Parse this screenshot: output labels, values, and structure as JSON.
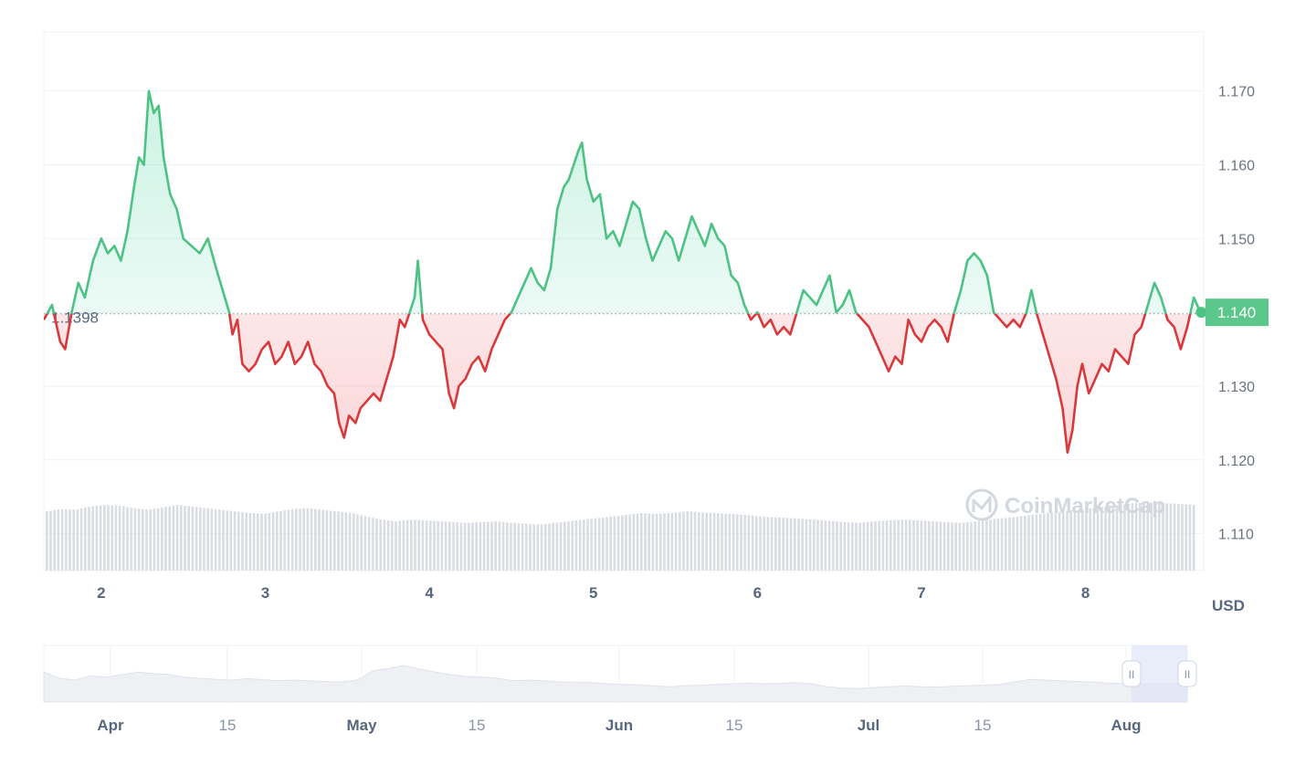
{
  "chart_data": {
    "type": "line",
    "unit": "USD",
    "baseline": 1.1398,
    "baseline_label": "1.1398",
    "current_value": 1.14,
    "current_label": "1.140",
    "ylim": [
      1.105,
      1.178
    ],
    "y_ticks": [
      "1.170",
      "1.160",
      "1.150",
      "1.140",
      "1.130",
      "1.120",
      "1.110"
    ],
    "x_ticks": [
      "2",
      "3",
      "4",
      "5",
      "6",
      "7",
      "8"
    ],
    "xlim": [
      1.65,
      8.72
    ],
    "colors": {
      "up": "#16c784",
      "down": "#ea3943",
      "badge": "#5cc78a",
      "volume": "#d9dce1"
    },
    "series": [
      {
        "values": [
          [
            1.65,
            1.139
          ],
          [
            1.7,
            1.141
          ],
          [
            1.75,
            1.136
          ],
          [
            1.78,
            1.135
          ],
          [
            1.82,
            1.14
          ],
          [
            1.86,
            1.144
          ],
          [
            1.9,
            1.142
          ],
          [
            1.95,
            1.147
          ],
          [
            2.0,
            1.15
          ],
          [
            2.04,
            1.148
          ],
          [
            2.08,
            1.149
          ],
          [
            2.12,
            1.147
          ],
          [
            2.16,
            1.151
          ],
          [
            2.2,
            1.157
          ],
          [
            2.23,
            1.161
          ],
          [
            2.26,
            1.16
          ],
          [
            2.29,
            1.17
          ],
          [
            2.32,
            1.167
          ],
          [
            2.35,
            1.168
          ],
          [
            2.38,
            1.161
          ],
          [
            2.42,
            1.156
          ],
          [
            2.46,
            1.154
          ],
          [
            2.5,
            1.15
          ],
          [
            2.55,
            1.149
          ],
          [
            2.6,
            1.148
          ],
          [
            2.65,
            1.15
          ],
          [
            2.7,
            1.146
          ],
          [
            2.74,
            1.143
          ],
          [
            2.78,
            1.14
          ],
          [
            2.8,
            1.137
          ],
          [
            2.83,
            1.139
          ],
          [
            2.86,
            1.133
          ],
          [
            2.9,
            1.132
          ],
          [
            2.94,
            1.133
          ],
          [
            2.98,
            1.135
          ],
          [
            3.02,
            1.136
          ],
          [
            3.06,
            1.133
          ],
          [
            3.1,
            1.134
          ],
          [
            3.14,
            1.136
          ],
          [
            3.18,
            1.133
          ],
          [
            3.22,
            1.134
          ],
          [
            3.26,
            1.136
          ],
          [
            3.3,
            1.133
          ],
          [
            3.34,
            1.132
          ],
          [
            3.38,
            1.13
          ],
          [
            3.42,
            1.129
          ],
          [
            3.45,
            1.125
          ],
          [
            3.48,
            1.123
          ],
          [
            3.51,
            1.126
          ],
          [
            3.55,
            1.125
          ],
          [
            3.58,
            1.127
          ],
          [
            3.62,
            1.128
          ],
          [
            3.66,
            1.129
          ],
          [
            3.7,
            1.128
          ],
          [
            3.74,
            1.131
          ],
          [
            3.78,
            1.134
          ],
          [
            3.82,
            1.139
          ],
          [
            3.85,
            1.138
          ],
          [
            3.88,
            1.14
          ],
          [
            3.91,
            1.142
          ],
          [
            3.93,
            1.147
          ],
          [
            3.96,
            1.139
          ],
          [
            4.0,
            1.137
          ],
          [
            4.04,
            1.136
          ],
          [
            4.08,
            1.135
          ],
          [
            4.12,
            1.129
          ],
          [
            4.15,
            1.127
          ],
          [
            4.18,
            1.13
          ],
          [
            4.22,
            1.131
          ],
          [
            4.26,
            1.133
          ],
          [
            4.3,
            1.134
          ],
          [
            4.34,
            1.132
          ],
          [
            4.38,
            1.135
          ],
          [
            4.42,
            1.137
          ],
          [
            4.46,
            1.139
          ],
          [
            4.5,
            1.14
          ],
          [
            4.54,
            1.142
          ],
          [
            4.58,
            1.144
          ],
          [
            4.62,
            1.146
          ],
          [
            4.66,
            1.144
          ],
          [
            4.7,
            1.143
          ],
          [
            4.74,
            1.146
          ],
          [
            4.78,
            1.154
          ],
          [
            4.82,
            1.157
          ],
          [
            4.85,
            1.158
          ],
          [
            4.88,
            1.16
          ],
          [
            4.91,
            1.162
          ],
          [
            4.93,
            1.163
          ],
          [
            4.96,
            1.158
          ],
          [
            5.0,
            1.155
          ],
          [
            5.04,
            1.156
          ],
          [
            5.08,
            1.15
          ],
          [
            5.12,
            1.151
          ],
          [
            5.16,
            1.149
          ],
          [
            5.2,
            1.152
          ],
          [
            5.24,
            1.155
          ],
          [
            5.28,
            1.154
          ],
          [
            5.32,
            1.15
          ],
          [
            5.36,
            1.147
          ],
          [
            5.4,
            1.149
          ],
          [
            5.44,
            1.151
          ],
          [
            5.48,
            1.15
          ],
          [
            5.52,
            1.147
          ],
          [
            5.56,
            1.15
          ],
          [
            5.6,
            1.153
          ],
          [
            5.64,
            1.151
          ],
          [
            5.68,
            1.149
          ],
          [
            5.72,
            1.152
          ],
          [
            5.76,
            1.15
          ],
          [
            5.8,
            1.149
          ],
          [
            5.84,
            1.145
          ],
          [
            5.88,
            1.144
          ],
          [
            5.92,
            1.141
          ],
          [
            5.96,
            1.139
          ],
          [
            6.0,
            1.14
          ],
          [
            6.04,
            1.138
          ],
          [
            6.08,
            1.139
          ],
          [
            6.12,
            1.137
          ],
          [
            6.16,
            1.138
          ],
          [
            6.2,
            1.137
          ],
          [
            6.24,
            1.14
          ],
          [
            6.28,
            1.143
          ],
          [
            6.32,
            1.142
          ],
          [
            6.36,
            1.141
          ],
          [
            6.4,
            1.143
          ],
          [
            6.44,
            1.145
          ],
          [
            6.48,
            1.14
          ],
          [
            6.52,
            1.141
          ],
          [
            6.56,
            1.143
          ],
          [
            6.6,
            1.14
          ],
          [
            6.64,
            1.139
          ],
          [
            6.68,
            1.138
          ],
          [
            6.72,
            1.136
          ],
          [
            6.76,
            1.134
          ],
          [
            6.8,
            1.132
          ],
          [
            6.84,
            1.134
          ],
          [
            6.88,
            1.133
          ],
          [
            6.92,
            1.139
          ],
          [
            6.96,
            1.137
          ],
          [
            7.0,
            1.136
          ],
          [
            7.04,
            1.138
          ],
          [
            7.08,
            1.139
          ],
          [
            7.12,
            1.138
          ],
          [
            7.16,
            1.136
          ],
          [
            7.2,
            1.14
          ],
          [
            7.24,
            1.143
          ],
          [
            7.28,
            1.147
          ],
          [
            7.32,
            1.148
          ],
          [
            7.36,
            1.147
          ],
          [
            7.4,
            1.145
          ],
          [
            7.44,
            1.14
          ],
          [
            7.48,
            1.139
          ],
          [
            7.52,
            1.138
          ],
          [
            7.56,
            1.139
          ],
          [
            7.6,
            1.138
          ],
          [
            7.64,
            1.14
          ],
          [
            7.67,
            1.143
          ],
          [
            7.7,
            1.14
          ],
          [
            7.74,
            1.137
          ],
          [
            7.78,
            1.134
          ],
          [
            7.82,
            1.131
          ],
          [
            7.86,
            1.127
          ],
          [
            7.89,
            1.121
          ],
          [
            7.92,
            1.124
          ],
          [
            7.95,
            1.13
          ],
          [
            7.98,
            1.133
          ],
          [
            8.02,
            1.129
          ],
          [
            8.06,
            1.131
          ],
          [
            8.1,
            1.133
          ],
          [
            8.14,
            1.132
          ],
          [
            8.18,
            1.135
          ],
          [
            8.22,
            1.134
          ],
          [
            8.26,
            1.133
          ],
          [
            8.3,
            1.137
          ],
          [
            8.34,
            1.138
          ],
          [
            8.38,
            1.141
          ],
          [
            8.42,
            1.144
          ],
          [
            8.46,
            1.142
          ],
          [
            8.5,
            1.139
          ],
          [
            8.54,
            1.138
          ],
          [
            8.58,
            1.135
          ],
          [
            8.62,
            1.138
          ],
          [
            8.66,
            1.142
          ],
          [
            8.7,
            1.14
          ]
        ]
      }
    ],
    "navigator": {
      "month_ticks": [
        {
          "label": "Apr",
          "major": true
        },
        {
          "label": "15",
          "major": false
        },
        {
          "label": "May",
          "major": true
        },
        {
          "label": "15",
          "major": false
        },
        {
          "label": "Jun",
          "major": true
        },
        {
          "label": "15",
          "major": false
        },
        {
          "label": "Jul",
          "major": true
        },
        {
          "label": "15",
          "major": false
        },
        {
          "label": "Aug",
          "major": true
        }
      ],
      "handle_glyph": "II",
      "profile": [
        0.62,
        0.45,
        0.4,
        0.52,
        0.48,
        0.55,
        0.62,
        0.58,
        0.55,
        0.48,
        0.45,
        0.42,
        0.4,
        0.44,
        0.41,
        0.38,
        0.4,
        0.38,
        0.36,
        0.35,
        0.4,
        0.65,
        0.72,
        0.8,
        0.7,
        0.62,
        0.55,
        0.5,
        0.48,
        0.45,
        0.38,
        0.4,
        0.38,
        0.35,
        0.34,
        0.33,
        0.3,
        0.28,
        0.27,
        0.24,
        0.22,
        0.25,
        0.26,
        0.28,
        0.3,
        0.32,
        0.3,
        0.31,
        0.33,
        0.3,
        0.22,
        0.18,
        0.17,
        0.2,
        0.22,
        0.24,
        0.22,
        0.21,
        0.23,
        0.25,
        0.26,
        0.28,
        0.35,
        0.42,
        0.4,
        0.38,
        0.36,
        0.35,
        0.32,
        0.3,
        0.28,
        0.3,
        0.31,
        0.3
      ]
    },
    "volume_profile": [
      0.72,
      0.75,
      0.74,
      0.78,
      0.8,
      0.79,
      0.76,
      0.74,
      0.77,
      0.8,
      0.78,
      0.76,
      0.74,
      0.72,
      0.7,
      0.69,
      0.72,
      0.75,
      0.76,
      0.74,
      0.72,
      0.7,
      0.66,
      0.62,
      0.6,
      0.62,
      0.61,
      0.6,
      0.59,
      0.58,
      0.59,
      0.6,
      0.58,
      0.57,
      0.56,
      0.58,
      0.6,
      0.62,
      0.64,
      0.66,
      0.68,
      0.7,
      0.69,
      0.7,
      0.72,
      0.71,
      0.7,
      0.69,
      0.68,
      0.66,
      0.65,
      0.64,
      0.63,
      0.62,
      0.6,
      0.59,
      0.58,
      0.6,
      0.61,
      0.62,
      0.61,
      0.6,
      0.59,
      0.58,
      0.6,
      0.62,
      0.64,
      0.66,
      0.68,
      0.7,
      0.72,
      0.74,
      0.76,
      0.78,
      0.8,
      0.82,
      0.83,
      0.82,
      0.81,
      0.8
    ]
  },
  "watermark": "CoinMarketCap"
}
